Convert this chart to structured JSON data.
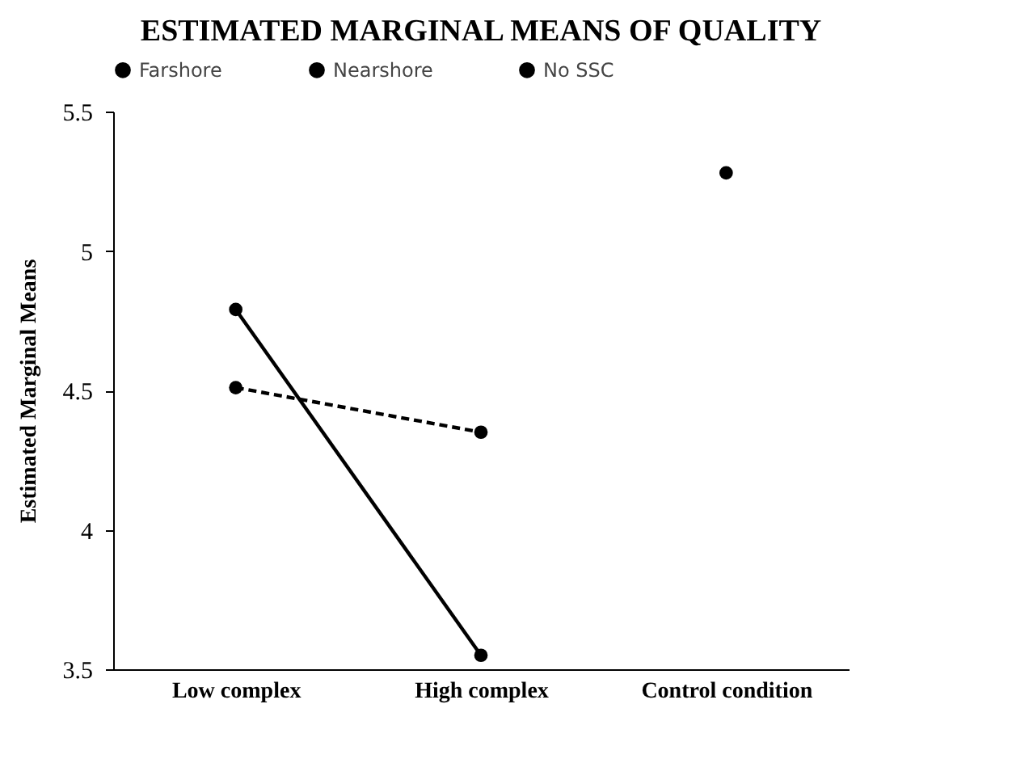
{
  "chart_data": {
    "type": "line",
    "title": "ESTIMATED MARGINAL MEANS OF QUALITY",
    "ylabel": "Estimated Marginal Means",
    "categories": [
      "Low complex",
      "High complex",
      "Control condition"
    ],
    "series": [
      {
        "name": "Farshore",
        "color": "#000000",
        "line_style": "solid",
        "values": [
          4.79,
          3.55,
          null
        ]
      },
      {
        "name": "Nearshore",
        "color": "#000000",
        "line_style": "dashed",
        "values": [
          4.51,
          4.35,
          null
        ]
      },
      {
        "name": "No SSC",
        "type": "scatter",
        "color": "#000000",
        "values": [
          null,
          null,
          5.28
        ]
      }
    ],
    "ylim": [
      3.5,
      5.5
    ],
    "yticks": [
      3.5,
      4,
      4.5,
      5,
      5.5
    ],
    "grid": false,
    "legend": "top",
    "marker": "circle"
  }
}
